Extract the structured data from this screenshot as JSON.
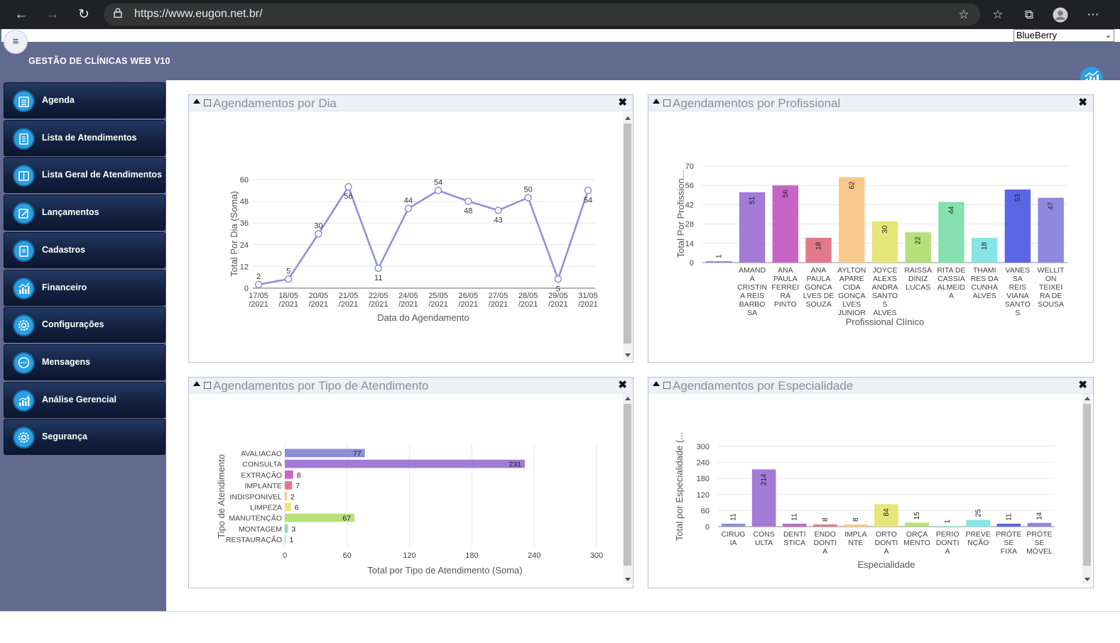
{
  "browser": {
    "url": "https://www.eugon.net.br/"
  },
  "app": {
    "title": "GESTÃO DE CLÍNICAS WEB V10",
    "theme": "BlueBerry"
  },
  "sidebar": {
    "items": [
      {
        "label": "Agenda",
        "icon": "calendar-icon"
      },
      {
        "label": "Lista de Atendimentos",
        "icon": "list-icon"
      },
      {
        "label": "Lista Geral de Atendimentos",
        "icon": "book-icon"
      },
      {
        "label": "Lançamentos",
        "icon": "edit-icon"
      },
      {
        "label": "Cadastros",
        "icon": "document-icon"
      },
      {
        "label": "Financeiro",
        "icon": "chart-icon"
      },
      {
        "label": "Configurações",
        "icon": "gear-icon"
      },
      {
        "label": "Mensagens",
        "icon": "chat-icon"
      },
      {
        "label": "Análise Gerencial",
        "icon": "analytics-icon"
      },
      {
        "label": "Segurança",
        "icon": "gear-icon"
      }
    ]
  },
  "panels": {
    "dia": {
      "title": "Agendamentos por Dia"
    },
    "profissional": {
      "title": "Agendamentos por Profissional"
    },
    "tipo": {
      "title": "Agendamentos por Tipo de Atendimento"
    },
    "especialidade": {
      "title": "Agendamentos por Especialidade"
    }
  },
  "colors": {
    "header": "#626a8f",
    "accent": "#2aa0e2",
    "line": "#8d8fd6"
  },
  "chart_data": [
    {
      "type": "line",
      "panel": "dia",
      "xlabel": "Data do Agendamento",
      "ylabel": "Total Por Dia (Soma)",
      "ylim": [
        0,
        60
      ],
      "yticks": [
        0,
        12,
        24,
        36,
        48,
        60
      ],
      "categories": [
        "17/05\n/2021",
        "18/05\n/2021",
        "20/05\n/2021",
        "21/05\n/2021",
        "22/05\n/2021",
        "24/05\n/2021",
        "25/05\n/2021",
        "26/05\n/2021",
        "27/05\n/2021",
        "28/05\n/2021",
        "29/05\n/2021",
        "31/05\n/2021"
      ],
      "values": [
        2,
        5,
        30,
        56,
        11,
        44,
        54,
        48,
        43,
        50,
        5,
        54
      ],
      "grid": true
    },
    {
      "type": "bar",
      "panel": "profissional",
      "xlabel": "Profissional Clínico",
      "ylabel": "Total Por Profission...",
      "ylim": [
        0,
        70
      ],
      "yticks": [
        0,
        14,
        28,
        42,
        56,
        70
      ],
      "categories": [
        "",
        "AMAND\nA\nCRISTIN\nA REIS\nBARBO\nSA",
        "ANA\nPAULA\nFERREI\nRA\nPINTO",
        "ANA\nPAULA\nGONCA\nLVES DE\nSOUZA",
        "AYLTON\nAPARE\nCIDA\nGONÇA\nLVES\nJUNIOR",
        "JOYCE\nALEXS\nANDRA\nSANTO\nS\nALVES",
        "RAISSA\nDINIZ\nLUCAS",
        "RITA DE\nCASSIA\nALMEID\nA",
        "THAMI\nRES DA\nCUNHA\nALVES",
        "VANES\nSA\nREIS\nVIANA\nSANTO\nS",
        "WELLIT\nON\nTEIXEI\nRA DE\nSOUSA"
      ],
      "values": [
        1,
        51,
        56,
        18,
        62,
        30,
        22,
        44,
        18,
        53,
        47
      ],
      "colors": [
        "#8d8fd6",
        "#a37ad6",
        "#c765c7",
        "#e07a8a",
        "#f7c98c",
        "#e6e67a",
        "#b8e07a",
        "#86e0b0",
        "#86e6e6",
        "#5a66e6",
        "#8e88e0"
      ],
      "grid": true
    },
    {
      "type": "bar",
      "orientation": "horizontal",
      "panel": "tipo",
      "xlabel": "Total por Tipo de Atendimento (Soma)",
      "ylabel": "Tipo de Atendimento",
      "xlim": [
        0,
        300
      ],
      "xticks": [
        0,
        60,
        120,
        180,
        240,
        300
      ],
      "categories": [
        "AVALIACAO",
        "CONSULTA",
        "EXTRAÇÃO",
        "IMPLANTE",
        "INDISPONIVEL",
        "LIMPEZA",
        "MANUTENÇÃO",
        "MONTAGEM",
        "RESTAURAÇÃO"
      ],
      "values": [
        77,
        231,
        8,
        7,
        2,
        6,
        67,
        3,
        1
      ],
      "colors": [
        "#8d8fd6",
        "#a37ad6",
        "#c765c7",
        "#e07a8a",
        "#f7c98c",
        "#e6e67a",
        "#b8e07a",
        "#86e0b0",
        "#86e6e6"
      ],
      "grid": true
    },
    {
      "type": "bar",
      "panel": "especialidade",
      "xlabel": "Especialidade",
      "ylabel": "Total por Especialidade (...",
      "ylim": [
        0,
        300
      ],
      "yticks": [
        0,
        60,
        120,
        180,
        240,
        300
      ],
      "categories": [
        "CIRUG\nIA",
        "CONS\nULTA",
        "DENTI\nSTICA",
        "ENDO\nDONTI\nA",
        "IMPLA\nNTE",
        "ORTO\nDONTI\nA",
        "ORÇA\nMENTO",
        "PERIO\nDONTI\nA",
        "PREVE\nNÇÃO",
        "PRÓTE\nSE\nFIXA",
        "PRÓTE\nSE\nMÓVEL"
      ],
      "values": [
        11,
        214,
        11,
        8,
        8,
        84,
        15,
        1,
        25,
        11,
        14
      ],
      "colors": [
        "#8d8fd6",
        "#a37ad6",
        "#c765c7",
        "#e07a8a",
        "#f7c98c",
        "#e6e67a",
        "#b8e07a",
        "#86e0b0",
        "#86e6e6",
        "#5a66e6",
        "#8e88e0"
      ],
      "grid": true
    }
  ]
}
